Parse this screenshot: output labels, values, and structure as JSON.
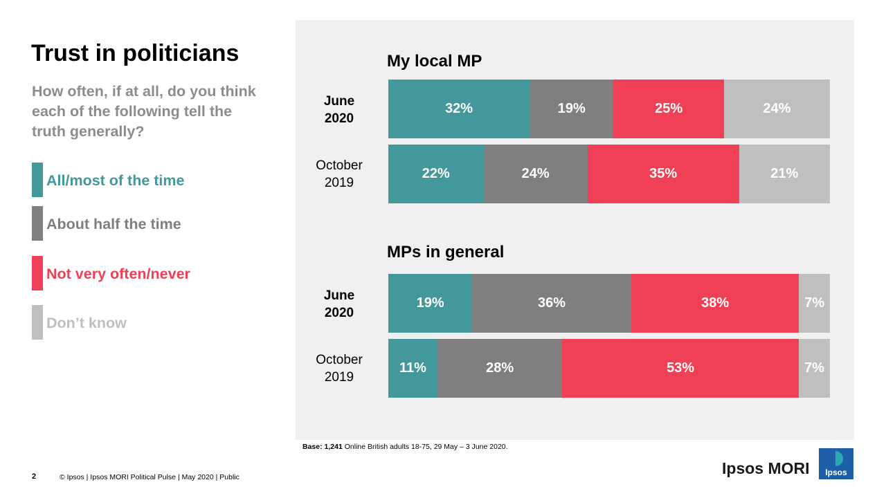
{
  "page": {
    "title": "Trust in politicians",
    "question": "How often, if at all, do you think each of the following tell the truth generally?"
  },
  "legend": [
    {
      "label": "All/most of the time",
      "color": "#42989a"
    },
    {
      "label": "About half the time",
      "color": "#7f7f7f"
    },
    {
      "label": "Not very often/never",
      "color": "#ef4055"
    },
    {
      "label": "Don’t know",
      "color": "#bfbfbf"
    }
  ],
  "chart_data": {
    "type": "bar",
    "orientation": "horizontal-stacked-100",
    "series_names": [
      "All/most of the time",
      "About half the time",
      "Not very often/never",
      "Don’t know"
    ],
    "colors": [
      "#42989a",
      "#7f7f7f",
      "#ef4055",
      "#bfbfbf"
    ],
    "groups": [
      {
        "title": "My local MP",
        "rows": [
          {
            "label_line1": "June",
            "label_line2": "2020",
            "bold": true,
            "values": [
              32,
              19,
              25,
              24
            ],
            "labels": [
              "32%",
              "19%",
              "25%",
              "24%"
            ]
          },
          {
            "label_line1": "October",
            "label_line2": "2019",
            "bold": false,
            "values": [
              22,
              24,
              35,
              21
            ],
            "labels": [
              "22%",
              "24%",
              "35%",
              "21%"
            ]
          }
        ]
      },
      {
        "title": "MPs in general",
        "rows": [
          {
            "label_line1": "June",
            "label_line2": "2020",
            "bold": true,
            "values": [
              19,
              36,
              38,
              7
            ],
            "labels": [
              "19%",
              "36%",
              "38%",
              "7%"
            ]
          },
          {
            "label_line1": "October",
            "label_line2": "2019",
            "bold": false,
            "values": [
              11,
              28,
              53,
              7
            ],
            "labels": [
              "11%",
              "28%",
              "53%",
              "7%"
            ]
          }
        ]
      }
    ]
  },
  "base_note": {
    "label": "Base:",
    "count": "1,241",
    "text": " Online British adults 18-75, 29 May – 3 June 2020."
  },
  "footer": {
    "page_number": "2",
    "text": "© Ipsos | Ipsos MORI Political Pulse | May 2020 | Public",
    "brand": "Ipsos MORI",
    "logo_text": "Ipsos",
    "logo_color": "#1d5fa8",
    "logo_accent": "#2bb3b0"
  }
}
